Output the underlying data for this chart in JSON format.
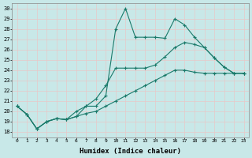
{
  "bg_color": "#c8e8e8",
  "grid_color": "#e8c8c8",
  "line_color": "#1a7a6a",
  "xlabel": "Humidex (Indice chaleur)",
  "xlim": [
    -0.5,
    23.5
  ],
  "ylim": [
    17.5,
    30.5
  ],
  "yticks": [
    18,
    19,
    20,
    21,
    22,
    23,
    24,
    25,
    26,
    27,
    28,
    29,
    30
  ],
  "xticks": [
    0,
    1,
    2,
    3,
    4,
    5,
    6,
    7,
    8,
    9,
    10,
    11,
    12,
    13,
    14,
    15,
    16,
    17,
    18,
    19,
    20,
    21,
    22,
    23
  ],
  "line1_x": [
    0,
    1,
    2,
    3,
    4,
    5,
    6,
    7,
    8,
    9,
    10,
    11,
    12,
    13,
    14,
    15,
    16,
    17,
    18,
    19,
    20,
    21,
    22,
    23
  ],
  "line1_y": [
    20.5,
    19.7,
    18.3,
    19.0,
    19.3,
    19.2,
    19.5,
    20.5,
    20.5,
    21.5,
    28.0,
    30.0,
    27.2,
    27.2,
    27.2,
    27.1,
    29.0,
    28.4,
    27.2,
    26.2,
    25.2,
    24.3,
    23.7,
    23.7
  ],
  "line2_x": [
    0,
    1,
    2,
    3,
    4,
    5,
    6,
    7,
    8,
    9,
    10,
    11,
    12,
    13,
    14,
    15,
    16,
    17,
    18,
    19,
    20,
    21,
    22,
    23
  ],
  "line2_y": [
    20.5,
    19.7,
    18.3,
    19.0,
    19.3,
    19.2,
    20.0,
    20.5,
    21.2,
    22.5,
    24.2,
    24.2,
    24.2,
    24.2,
    24.5,
    25.3,
    26.2,
    26.7,
    26.5,
    26.2,
    25.2,
    24.3,
    23.7,
    23.7
  ],
  "line3_x": [
    0,
    1,
    2,
    3,
    4,
    5,
    6,
    7,
    8,
    9,
    10,
    11,
    12,
    13,
    14,
    15,
    16,
    17,
    18,
    19,
    20,
    21,
    22,
    23
  ],
  "line3_y": [
    20.5,
    19.7,
    18.3,
    19.0,
    19.3,
    19.2,
    19.5,
    19.8,
    20.0,
    20.5,
    21.0,
    21.5,
    22.0,
    22.5,
    23.0,
    23.5,
    24.0,
    24.0,
    23.8,
    23.7,
    23.7,
    23.7,
    23.7,
    23.7
  ]
}
